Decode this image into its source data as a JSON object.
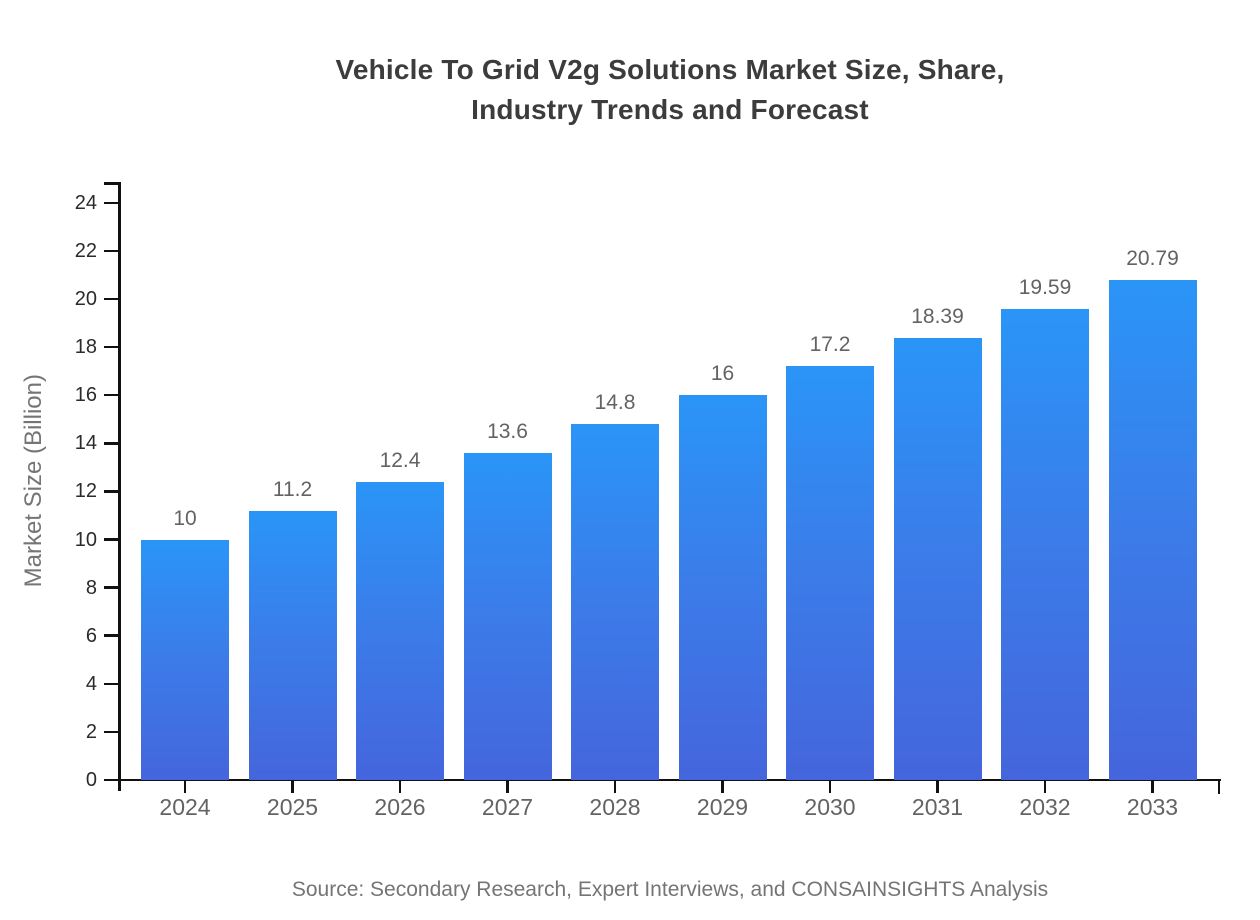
{
  "chart_data": {
    "type": "bar",
    "title": "Vehicle To Grid V2g Solutions Market Size, Share, Industry Trends and Forecast",
    "title_lines": [
      "Vehicle To Grid V2g Solutions Market Size, Share,",
      "Industry Trends and Forecast"
    ],
    "categories": [
      "2024",
      "2025",
      "2026",
      "2027",
      "2028",
      "2029",
      "2030",
      "2031",
      "2032",
      "2033"
    ],
    "values": [
      10,
      11.2,
      12.4,
      13.6,
      14.8,
      16,
      17.2,
      18.39,
      19.59,
      20.79
    ],
    "xlabel": "",
    "ylabel": "Market Size (Billion)",
    "ylim": [
      0,
      24
    ],
    "ytick_step": 2,
    "yticks": [
      0,
      2,
      4,
      6,
      8,
      10,
      12,
      14,
      16,
      18,
      20,
      22,
      24
    ],
    "grid": false,
    "legend_position": "none",
    "bar_color_top": "#2A95F7",
    "bar_color_bottom": "#4565DC",
    "axis_color": "#111111",
    "label_color": "#636363",
    "title_color": "#3c3c3c"
  },
  "footer": {
    "source": "Source: Secondary Research, Expert Interviews, and CONSAINSIGHTS Analysis"
  }
}
